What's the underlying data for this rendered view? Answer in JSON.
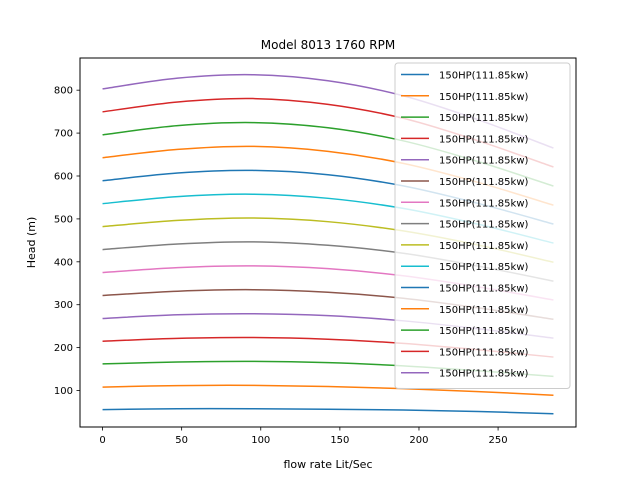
{
  "chart_data": {
    "type": "line",
    "title": "Model 8013 1760 RPM",
    "xlabel": "flow rate Lit/Sec",
    "ylabel": "Head (m)",
    "xlim": [
      -14.25,
      299.25
    ],
    "ylim": [
      15,
      875
    ],
    "xticks": [
      0,
      50,
      100,
      150,
      200,
      250
    ],
    "yticks": [
      100,
      200,
      300,
      400,
      500,
      600,
      700,
      800
    ],
    "grid": false,
    "legend_position": "top-right",
    "x": [
      0,
      47.5,
      95,
      142.5,
      190,
      237.5,
      285
    ],
    "series": [
      {
        "name": "150HP(111.85kw)",
        "color": "#1f77b4",
        "values": [
          55.5,
          57.5,
          57.5,
          56.5,
          54.5,
          51,
          46
        ]
      },
      {
        "name": "150HP(111.85kw)",
        "color": "#ff7f0e",
        "values": [
          108,
          111.5,
          112,
          109.5,
          104.5,
          97.5,
          89
        ]
      },
      {
        "name": "150HP(111.85kw)",
        "color": "#2ca02c",
        "values": [
          162,
          166.5,
          168,
          165,
          157.5,
          146,
          133
        ]
      },
      {
        "name": "150HP(111.85kw)",
        "color": "#d62728",
        "values": [
          215,
          221.5,
          223.5,
          219.5,
          210,
          195,
          178
        ]
      },
      {
        "name": "150HP(111.85kw)",
        "color": "#9467bd",
        "values": [
          268,
          276.5,
          279,
          274.5,
          262.5,
          244,
          222
        ]
      },
      {
        "name": "150HP(111.85kw)",
        "color": "#8c564b",
        "values": [
          321.5,
          331.5,
          335,
          329,
          315,
          292.5,
          266
        ]
      },
      {
        "name": "150HP(111.85kw)",
        "color": "#e377c2",
        "values": [
          375,
          386.5,
          390.5,
          384,
          367.5,
          341.5,
          311
        ]
      },
      {
        "name": "150HP(111.85kw)",
        "color": "#7f7f7f",
        "values": [
          428.5,
          441.5,
          446.5,
          438.5,
          420,
          390,
          355
        ]
      },
      {
        "name": "150HP(111.85kw)",
        "color": "#bcbd22",
        "values": [
          482,
          496.5,
          502,
          493.5,
          472,
          439,
          399
        ]
      },
      {
        "name": "150HP(111.85kw)",
        "color": "#17becf",
        "values": [
          535.5,
          552,
          557.5,
          548,
          524.5,
          487.5,
          443.5
        ]
      },
      {
        "name": "150HP(111.85kw)",
        "color": "#1f77b4",
        "values": [
          589,
          607,
          613,
          603,
          577,
          536,
          488
        ]
      },
      {
        "name": "150HP(111.85kw)",
        "color": "#ff7f0e",
        "values": [
          642.5,
          662,
          669,
          657.5,
          629.5,
          585,
          532
        ]
      },
      {
        "name": "150HP(111.85kw)",
        "color": "#2ca02c",
        "values": [
          696,
          717.5,
          724.5,
          712.5,
          682,
          633.5,
          576.5
        ]
      },
      {
        "name": "150HP(111.85kw)",
        "color": "#d62728",
        "values": [
          749.5,
          772.5,
          780.5,
          767,
          734.5,
          682,
          621
        ]
      },
      {
        "name": "150HP(111.85kw)",
        "color": "#9467bd",
        "values": [
          803,
          828,
          836,
          822,
          787,
          731,
          665
        ]
      }
    ]
  }
}
